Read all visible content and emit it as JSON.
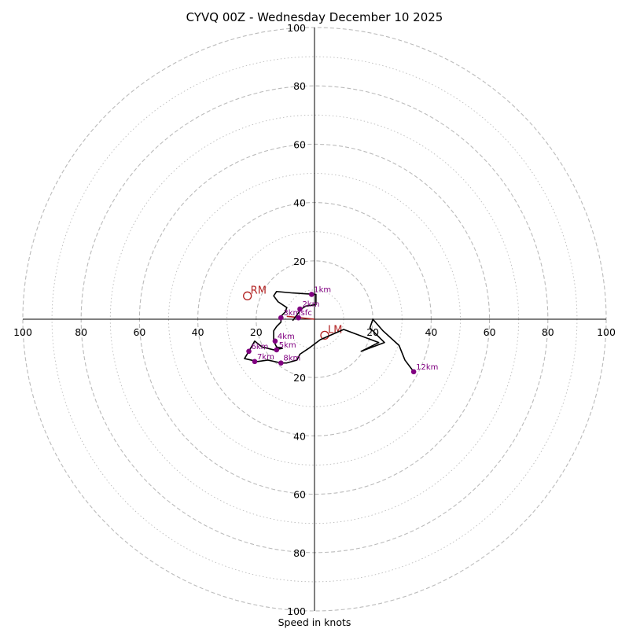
{
  "chart_data": {
    "type": "line",
    "subtype": "hodograph",
    "title": "CYVQ 00Z - Wednesday December 10 2025",
    "xlabel": "Speed in knots",
    "rings_major": [
      20,
      40,
      60,
      80,
      100
    ],
    "rings_minor": [
      10,
      30,
      50,
      70,
      90
    ],
    "max_speed": 100,
    "tick_labels": [
      "20",
      "40",
      "60",
      "80",
      "100"
    ],
    "colors": {
      "trace": "#000000",
      "markers": "#800080",
      "motion": "#b22222",
      "grid": "#bbbbbb"
    },
    "hodograph_trace": [
      [
        -7.5,
        -0.5
      ],
      [
        -6,
        1.5
      ],
      [
        -4.5,
        3.5
      ],
      [
        -3,
        4.5
      ],
      [
        0.5,
        5
      ],
      [
        0.5,
        8.5
      ],
      [
        -7.5,
        9
      ],
      [
        -13,
        9.5
      ],
      [
        -14,
        8
      ],
      [
        -12.5,
        6
      ],
      [
        -9.5,
        4
      ],
      [
        -10,
        2.5
      ],
      [
        -11.5,
        1
      ],
      [
        -11.5,
        -1
      ],
      [
        -13,
        -2.5
      ],
      [
        -14,
        -4
      ],
      [
        -14,
        -7.5
      ],
      [
        -13,
        -9.5
      ],
      [
        -11,
        -10
      ],
      [
        -14,
        -10.5
      ],
      [
        -18,
        -9.5
      ],
      [
        -20.5,
        -7.5
      ],
      [
        -22.5,
        -11
      ],
      [
        -24,
        -13.5
      ],
      [
        -19.5,
        -14.5
      ],
      [
        -16,
        -14
      ],
      [
        -11.5,
        -15
      ],
      [
        -9.5,
        -15
      ],
      [
        -6,
        -14
      ],
      [
        -5,
        -12
      ],
      [
        -2,
        -10
      ],
      [
        2,
        -7
      ],
      [
        10,
        -3.5
      ],
      [
        22,
        -8
      ],
      [
        16,
        -11
      ],
      [
        24,
        -8
      ],
      [
        22,
        -6
      ],
      [
        19,
        -3
      ],
      [
        20,
        0
      ],
      [
        23.5,
        -4
      ],
      [
        29,
        -9
      ],
      [
        31,
        -14
      ],
      [
        34,
        -18
      ]
    ],
    "height_markers": [
      {
        "label": "sfc",
        "u": -5.5,
        "v": 0.5
      },
      {
        "label": "1km",
        "u": -1,
        "v": 8.5
      },
      {
        "label": "2km",
        "u": -5,
        "v": 3.5
      },
      {
        "label": "3km",
        "u": -11.5,
        "v": 0.5
      },
      {
        "label": "4km",
        "u": -13.5,
        "v": -7.5
      },
      {
        "label": "5km",
        "u": -13,
        "v": -10.5
      },
      {
        "label": "6km",
        "u": -22.5,
        "v": -11
      },
      {
        "label": "7km",
        "u": -20.5,
        "v": -14.5
      },
      {
        "label": "8km",
        "u": -11.5,
        "v": -15
      },
      {
        "label": "12km",
        "u": 34,
        "v": -18
      }
    ],
    "storm_motion": [
      {
        "label": "RM",
        "u": -23,
        "v": 8
      },
      {
        "label": "LM",
        "u": 3.5,
        "v": -5.5
      }
    ],
    "mean_wind_vector": {
      "from": [
        -9.5,
        1
      ],
      "to": [
        0,
        0
      ]
    }
  }
}
